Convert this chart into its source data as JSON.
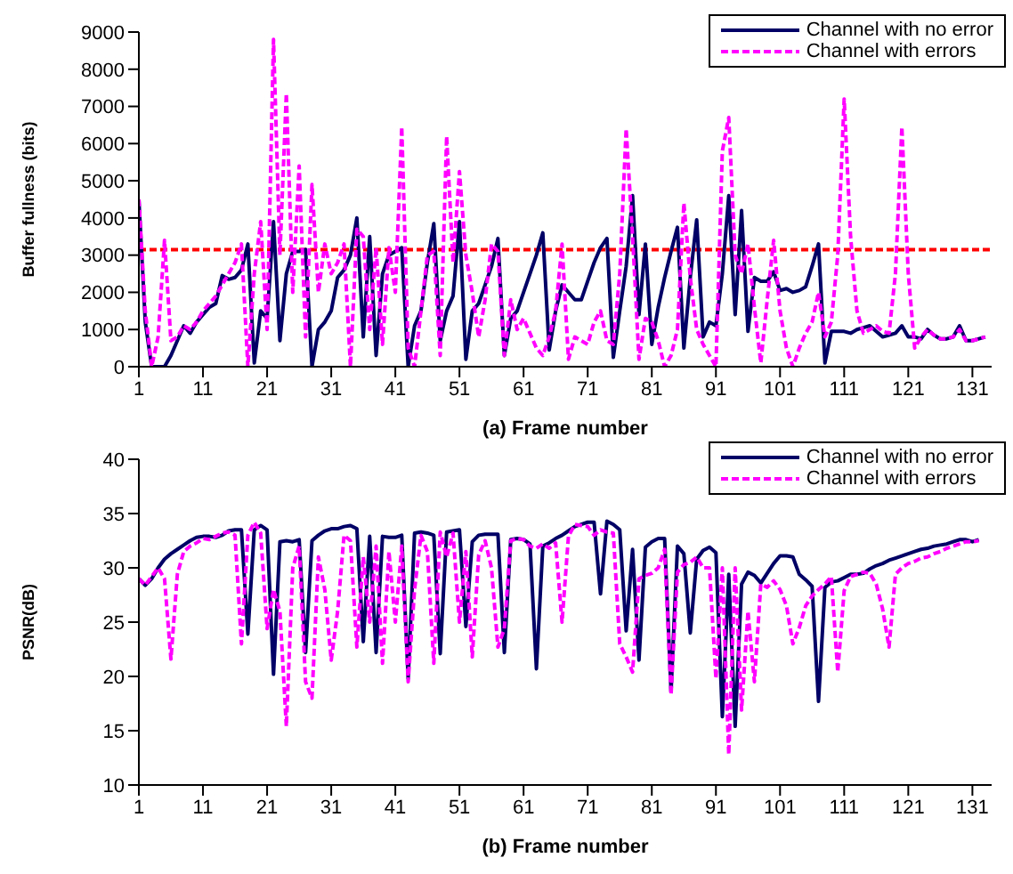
{
  "chart_data": [
    {
      "type": "line",
      "ylabel": "Buffer fullness (bits)",
      "xlabel": "(a) Frame number",
      "xlim": [
        1,
        134
      ],
      "xticks": [
        1,
        11,
        21,
        31,
        41,
        51,
        61,
        71,
        81,
        91,
        101,
        111,
        121,
        131
      ],
      "ylim": [
        0,
        9000
      ],
      "yticks": [
        0,
        1000,
        2000,
        3000,
        4000,
        5000,
        6000,
        7000,
        8000,
        9000
      ],
      "grid": false,
      "legend": "top right",
      "x": [
        1,
        2,
        3,
        4,
        5,
        6,
        7,
        8,
        9,
        10,
        11,
        12,
        13,
        14,
        15,
        16,
        17,
        18,
        19,
        20,
        21,
        22,
        23,
        24,
        25,
        26,
        27,
        28,
        29,
        30,
        31,
        32,
        33,
        34,
        35,
        36,
        37,
        38,
        39,
        40,
        41,
        42,
        43,
        44,
        45,
        46,
        47,
        48,
        49,
        50,
        51,
        52,
        53,
        54,
        55,
        56,
        57,
        58,
        59,
        60,
        61,
        62,
        63,
        64,
        65,
        66,
        67,
        68,
        69,
        70,
        71,
        72,
        73,
        74,
        75,
        76,
        77,
        78,
        79,
        80,
        81,
        82,
        83,
        84,
        85,
        86,
        87,
        88,
        89,
        90,
        91,
        92,
        93,
        94,
        95,
        96,
        97,
        98,
        99,
        100,
        101,
        102,
        103,
        104,
        105,
        106,
        107,
        108,
        109,
        110,
        111,
        112,
        113,
        114,
        115,
        116,
        117,
        118,
        119,
        120,
        121,
        122,
        123,
        124,
        125,
        126,
        127,
        128,
        129,
        130,
        131,
        132,
        133
      ],
      "ref_lines": [
        {
          "axis": "y",
          "value": 3150,
          "color": "#ff0000",
          "line_style": "dashed"
        }
      ],
      "series": [
        {
          "name": "Channel with no error",
          "color": "#000066",
          "line_style": "solid",
          "values": [
            4500,
            1200,
            0,
            0,
            0,
            300,
            700,
            1100,
            900,
            1200,
            1400,
            1600,
            1700,
            2450,
            2350,
            2400,
            2600,
            3300,
            100,
            1500,
            1300,
            3900,
            700,
            2500,
            3100,
            3100,
            3150,
            0,
            1000,
            1200,
            1500,
            2400,
            2600,
            3000,
            4000,
            800,
            3500,
            300,
            2500,
            3000,
            3100,
            3200,
            0,
            1100,
            1500,
            2800,
            3850,
            700,
            1500,
            1900,
            3900,
            200,
            1500,
            1700,
            2200,
            2700,
            3450,
            300,
            1300,
            1500,
            2000,
            2500,
            3000,
            3600,
            450,
            1500,
            2200,
            2000,
            1800,
            1800,
            2300,
            2800,
            3200,
            3450,
            250,
            1500,
            2700,
            4600,
            1400,
            3300,
            600,
            1600,
            2400,
            3100,
            3750,
            500,
            2400,
            3950,
            800,
            1200,
            1100,
            2500,
            4600,
            1400,
            4200,
            950,
            2400,
            2300,
            2300,
            2550,
            2050,
            2100,
            2000,
            2050,
            2150,
            2700,
            3300,
            100,
            950,
            950,
            950,
            900,
            1000,
            1050,
            1100,
            950,
            800,
            850,
            900,
            1100,
            800,
            800,
            750,
            1000,
            850,
            750,
            750,
            800,
            1100,
            700,
            700,
            750,
            800
          ]
        },
        {
          "name": "Channel with errors",
          "color": "#ff00ff",
          "line_style": "dashed",
          "values": [
            4500,
            1500,
            0,
            800,
            3400,
            700,
            800,
            1100,
            1000,
            1200,
            1500,
            1700,
            1900,
            2200,
            2500,
            2800,
            3300,
            0,
            2500,
            3900,
            1000,
            8800,
            3000,
            7350,
            2000,
            5400,
            800,
            4900,
            2000,
            3300,
            2500,
            2800,
            3300,
            0,
            3700,
            3500,
            1000,
            3200,
            600,
            3200,
            2000,
            6450,
            500,
            0,
            1500,
            3000,
            3100,
            300,
            6200,
            2800,
            5250,
            3000,
            2000,
            800,
            1800,
            3300,
            3100,
            300,
            1800,
            1000,
            1300,
            900,
            500,
            300,
            800,
            1500,
            3300,
            200,
            800,
            700,
            600,
            1200,
            1500,
            700,
            600,
            2500,
            6400,
            3500,
            200,
            1300,
            1200,
            700,
            0,
            300,
            1000,
            4400,
            2400,
            1000,
            600,
            300,
            0,
            5800,
            6700,
            3000,
            2500,
            3300,
            1600,
            100,
            1800,
            3400,
            1500,
            500,
            0,
            500,
            900,
            1200,
            2000,
            800,
            1200,
            3000,
            7200,
            3500,
            1500,
            900,
            1000,
            1100,
            950,
            900,
            2500,
            6450,
            2500,
            500,
            800,
            1000,
            850,
            750,
            750,
            800,
            1000,
            700,
            700,
            750,
            800
          ]
        }
      ]
    },
    {
      "type": "line",
      "ylabel": "PSNR(dB)",
      "xlabel": "(b) Frame number",
      "xlim": [
        1,
        134
      ],
      "xticks": [
        1,
        11,
        21,
        31,
        41,
        51,
        61,
        71,
        81,
        91,
        101,
        111,
        121,
        131
      ],
      "ylim": [
        10,
        40
      ],
      "yticks": [
        10,
        15,
        20,
        25,
        30,
        35,
        40
      ],
      "grid": false,
      "legend": "top right",
      "x": [
        1,
        2,
        3,
        4,
        5,
        6,
        7,
        8,
        9,
        10,
        11,
        12,
        13,
        14,
        15,
        16,
        17,
        18,
        19,
        20,
        21,
        22,
        23,
        24,
        25,
        26,
        27,
        28,
        29,
        30,
        31,
        32,
        33,
        34,
        35,
        36,
        37,
        38,
        39,
        40,
        41,
        42,
        43,
        44,
        45,
        46,
        47,
        48,
        49,
        50,
        51,
        52,
        53,
        54,
        55,
        56,
        57,
        58,
        59,
        60,
        61,
        62,
        63,
        64,
        65,
        66,
        67,
        68,
        69,
        70,
        71,
        72,
        73,
        74,
        75,
        76,
        77,
        78,
        79,
        80,
        81,
        82,
        83,
        84,
        85,
        86,
        87,
        88,
        89,
        90,
        91,
        92,
        93,
        94,
        95,
        96,
        97,
        98,
        99,
        100,
        101,
        102,
        103,
        104,
        105,
        106,
        107,
        108,
        109,
        110,
        111,
        112,
        113,
        114,
        115,
        116,
        117,
        118,
        119,
        120,
        121,
        122,
        123,
        124,
        125,
        126,
        127,
        128,
        129,
        130,
        131,
        132
      ],
      "series": [
        {
          "name": "Channel with no error",
          "color": "#000066",
          "line_style": "solid",
          "values": [
            29,
            28.4,
            29,
            30,
            30.8,
            31.3,
            31.7,
            32.1,
            32.5,
            32.8,
            32.9,
            32.9,
            32.8,
            33,
            33.4,
            33.5,
            33.5,
            23.9,
            33.5,
            33.9,
            33.5,
            20.2,
            32.4,
            32.5,
            32.4,
            32.6,
            22.2,
            32.5,
            33,
            33.4,
            33.6,
            33.6,
            33.8,
            33.9,
            33.6,
            23.2,
            32.9,
            22.2,
            32.9,
            32.8,
            32.8,
            33,
            19.8,
            33.2,
            33.3,
            33.2,
            33,
            22.1,
            33.3,
            33.4,
            33.5,
            24.6,
            32.4,
            33,
            33.1,
            33.1,
            33.1,
            22.2,
            32.6,
            32.7,
            32.6,
            32.2,
            20.7,
            32,
            32.3,
            32.7,
            33,
            33.4,
            33.8,
            34,
            34.2,
            34.2,
            27.6,
            34.3,
            34,
            33.5,
            24.2,
            31.7,
            21.5,
            31.9,
            32.4,
            32.7,
            32.7,
            18.6,
            32,
            31.3,
            24,
            30.8,
            31.6,
            31.9,
            31.4,
            16.3,
            29.4,
            15.4,
            28.5,
            29.6,
            29.3,
            28.6,
            29.5,
            30.4,
            31.1,
            31.1,
            31,
            29.4,
            28.9,
            28.3,
            17.7,
            28.2,
            28.7,
            28.8,
            29.1,
            29.4,
            29.4,
            29.5,
            29.9,
            30.2,
            30.4,
            30.7,
            30.9,
            31.1,
            31.3,
            31.5,
            31.7,
            31.8,
            32,
            32.1,
            32.2,
            32.4,
            32.6,
            32.6,
            32.4,
            32.6
          ]
        },
        {
          "name": "Channel with errors",
          "color": "#ff00ff",
          "line_style": "dashed",
          "values": [
            29,
            28.4,
            29.2,
            30,
            29,
            21.6,
            29.4,
            31.5,
            32,
            32.3,
            32.7,
            32.6,
            32.9,
            33.2,
            33.3,
            33,
            23,
            33,
            34.2,
            33.2,
            24.4,
            28,
            26,
            15.4,
            30,
            32,
            19.5,
            18,
            31,
            28,
            21.5,
            26,
            33,
            32.5,
            22.7,
            31,
            25,
            32,
            21.2,
            31.5,
            25,
            32,
            19.5,
            28,
            33,
            31.5,
            21.2,
            33.3,
            31,
            33.2,
            25,
            31.5,
            21.8,
            31.2,
            32.5,
            30,
            22.7,
            24.4,
            32.5,
            32.7,
            32.6,
            32,
            31.8,
            32.2,
            31.8,
            32.3,
            25,
            32.9,
            34,
            33.9,
            33.8,
            33,
            33.5,
            33.3,
            33.2,
            23,
            21.8,
            20.4,
            29,
            29.3,
            29.5,
            30,
            31.7,
            18.3,
            29.6,
            30.3,
            30.5,
            31,
            30,
            30,
            19.8,
            30,
            12.8,
            30,
            16.9,
            26,
            19.5,
            28.5,
            28.2,
            28.8,
            28,
            26.5,
            23,
            24.5,
            26.5,
            27.4,
            28,
            28.5,
            29.2,
            20.4,
            27.9,
            29.2,
            29.4,
            29.6,
            29.5,
            28.5,
            26.2,
            22.7,
            29.4,
            30,
            30.4,
            30.6,
            30.9,
            31,
            31.3,
            31.5,
            31.8,
            32,
            32.2,
            32.4,
            32.4,
            32.5
          ]
        }
      ]
    }
  ]
}
